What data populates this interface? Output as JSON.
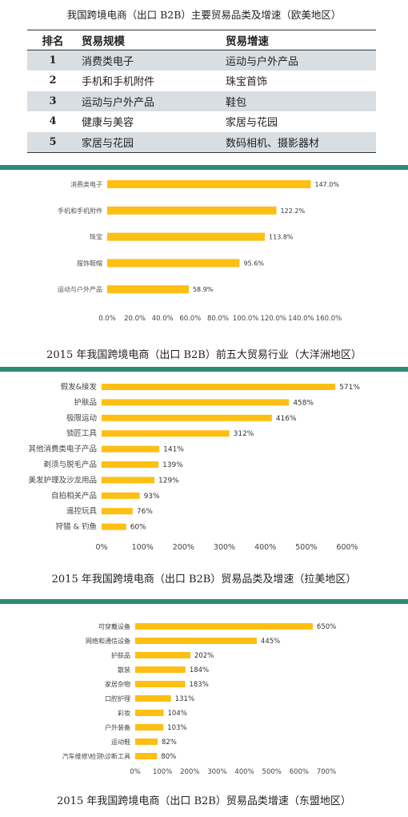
{
  "table": {
    "title": "我国跨境电商（出口 B2B）主要贸易品类及增速（欧美地区）",
    "headers": [
      "排名",
      "贸易规模",
      "贸易增速"
    ],
    "rows": [
      {
        "rank": "1",
        "scale": "消费类电子",
        "growth": "运动与户外产品"
      },
      {
        "rank": "2",
        "scale": "手机和手机附件",
        "growth": "珠宝首饰"
      },
      {
        "rank": "3",
        "scale": "运动与户外产品",
        "growth": "鞋包"
      },
      {
        "rank": "4",
        "scale": "健康与美容",
        "growth": "家居与花园"
      },
      {
        "rank": "5",
        "scale": "家居与花园",
        "growth": "数码相机、摄影器材"
      }
    ]
  },
  "colors": {
    "bar": "#fdbf13",
    "divider": "#2f8a73",
    "shade": "#d9dee3"
  },
  "chart_data": [
    {
      "type": "bar",
      "orientation": "horizontal",
      "title": "2015 年我国跨境电商（出口 B2B）前五大贸易行业（大洋洲地区）",
      "categories": [
        "消费类电子",
        "手机和手机附件",
        "珠宝",
        "服饰鞋帽",
        "运动与户外产品"
      ],
      "values": [
        147.0,
        122.2,
        113.8,
        95.6,
        58.9
      ],
      "value_labels": [
        "147.0%",
        "122.2%",
        "113.8%",
        "95.6%",
        "58.9%"
      ],
      "xlim": [
        0,
        160
      ],
      "xticks": [
        "0.0%",
        "20.0%",
        "40.0%",
        "60.0%",
        "80.0%",
        "100.0%",
        "120.0%",
        "140.0%",
        "160.0%"
      ],
      "grid": false,
      "legend": "none"
    },
    {
      "type": "bar",
      "orientation": "horizontal",
      "title": "2015 年我国跨境电商（出口 B2B）贸易品类及增速（拉美地区）",
      "categories": [
        "假发&接发",
        "护肤品",
        "极限运动",
        "锁匠工具",
        "其他消费类电子产品",
        "剃须与脱毛产品",
        "美发护理及沙龙用品",
        "自拍相关产品",
        "遥控玩具",
        "狩猎 & 钓鱼"
      ],
      "values": [
        571,
        458,
        416,
        312,
        141,
        139,
        129,
        93,
        76,
        60
      ],
      "value_labels": [
        "571%",
        "458%",
        "416%",
        "312%",
        "141%",
        "139%",
        "129%",
        "93%",
        "76%",
        "60%"
      ],
      "xlim": [
        0,
        600
      ],
      "xticks": [
        "0%",
        "100%",
        "200%",
        "300%",
        "400%",
        "500%",
        "600%"
      ],
      "grid": false,
      "legend": "none"
    },
    {
      "type": "bar",
      "orientation": "horizontal",
      "title": "2015 年我国跨境电商（出口 B2B）贸易品类增速（东盟地区）",
      "categories": [
        "可穿戴设备",
        "网络和通信设备",
        "护肤品",
        "散装",
        "家居杂物",
        "口腔护理",
        "彩妆",
        "户外装备",
        "运动鞋",
        "汽车维修\\检测\\诊断工具"
      ],
      "values": [
        650,
        445,
        202,
        184,
        183,
        131,
        104,
        103,
        82,
        80
      ],
      "value_labels": [
        "650%",
        "445%",
        "202%",
        "184%",
        "183%",
        "131%",
        "104%",
        "103%",
        "82%",
        "80%"
      ],
      "xlim": [
        0,
        700
      ],
      "xticks": [
        "0%",
        "100%",
        "200%",
        "300%",
        "400%",
        "500%",
        "600%",
        "700%"
      ],
      "grid": false,
      "legend": "none"
    }
  ]
}
